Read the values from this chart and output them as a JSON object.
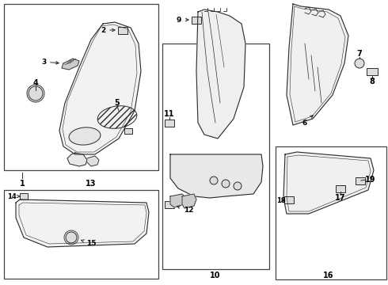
{
  "bg_color": "#ffffff",
  "line_color": "#2a2a2a",
  "box_line_color": "#444444",
  "fig_w": 4.9,
  "fig_h": 3.6,
  "dpi": 100
}
